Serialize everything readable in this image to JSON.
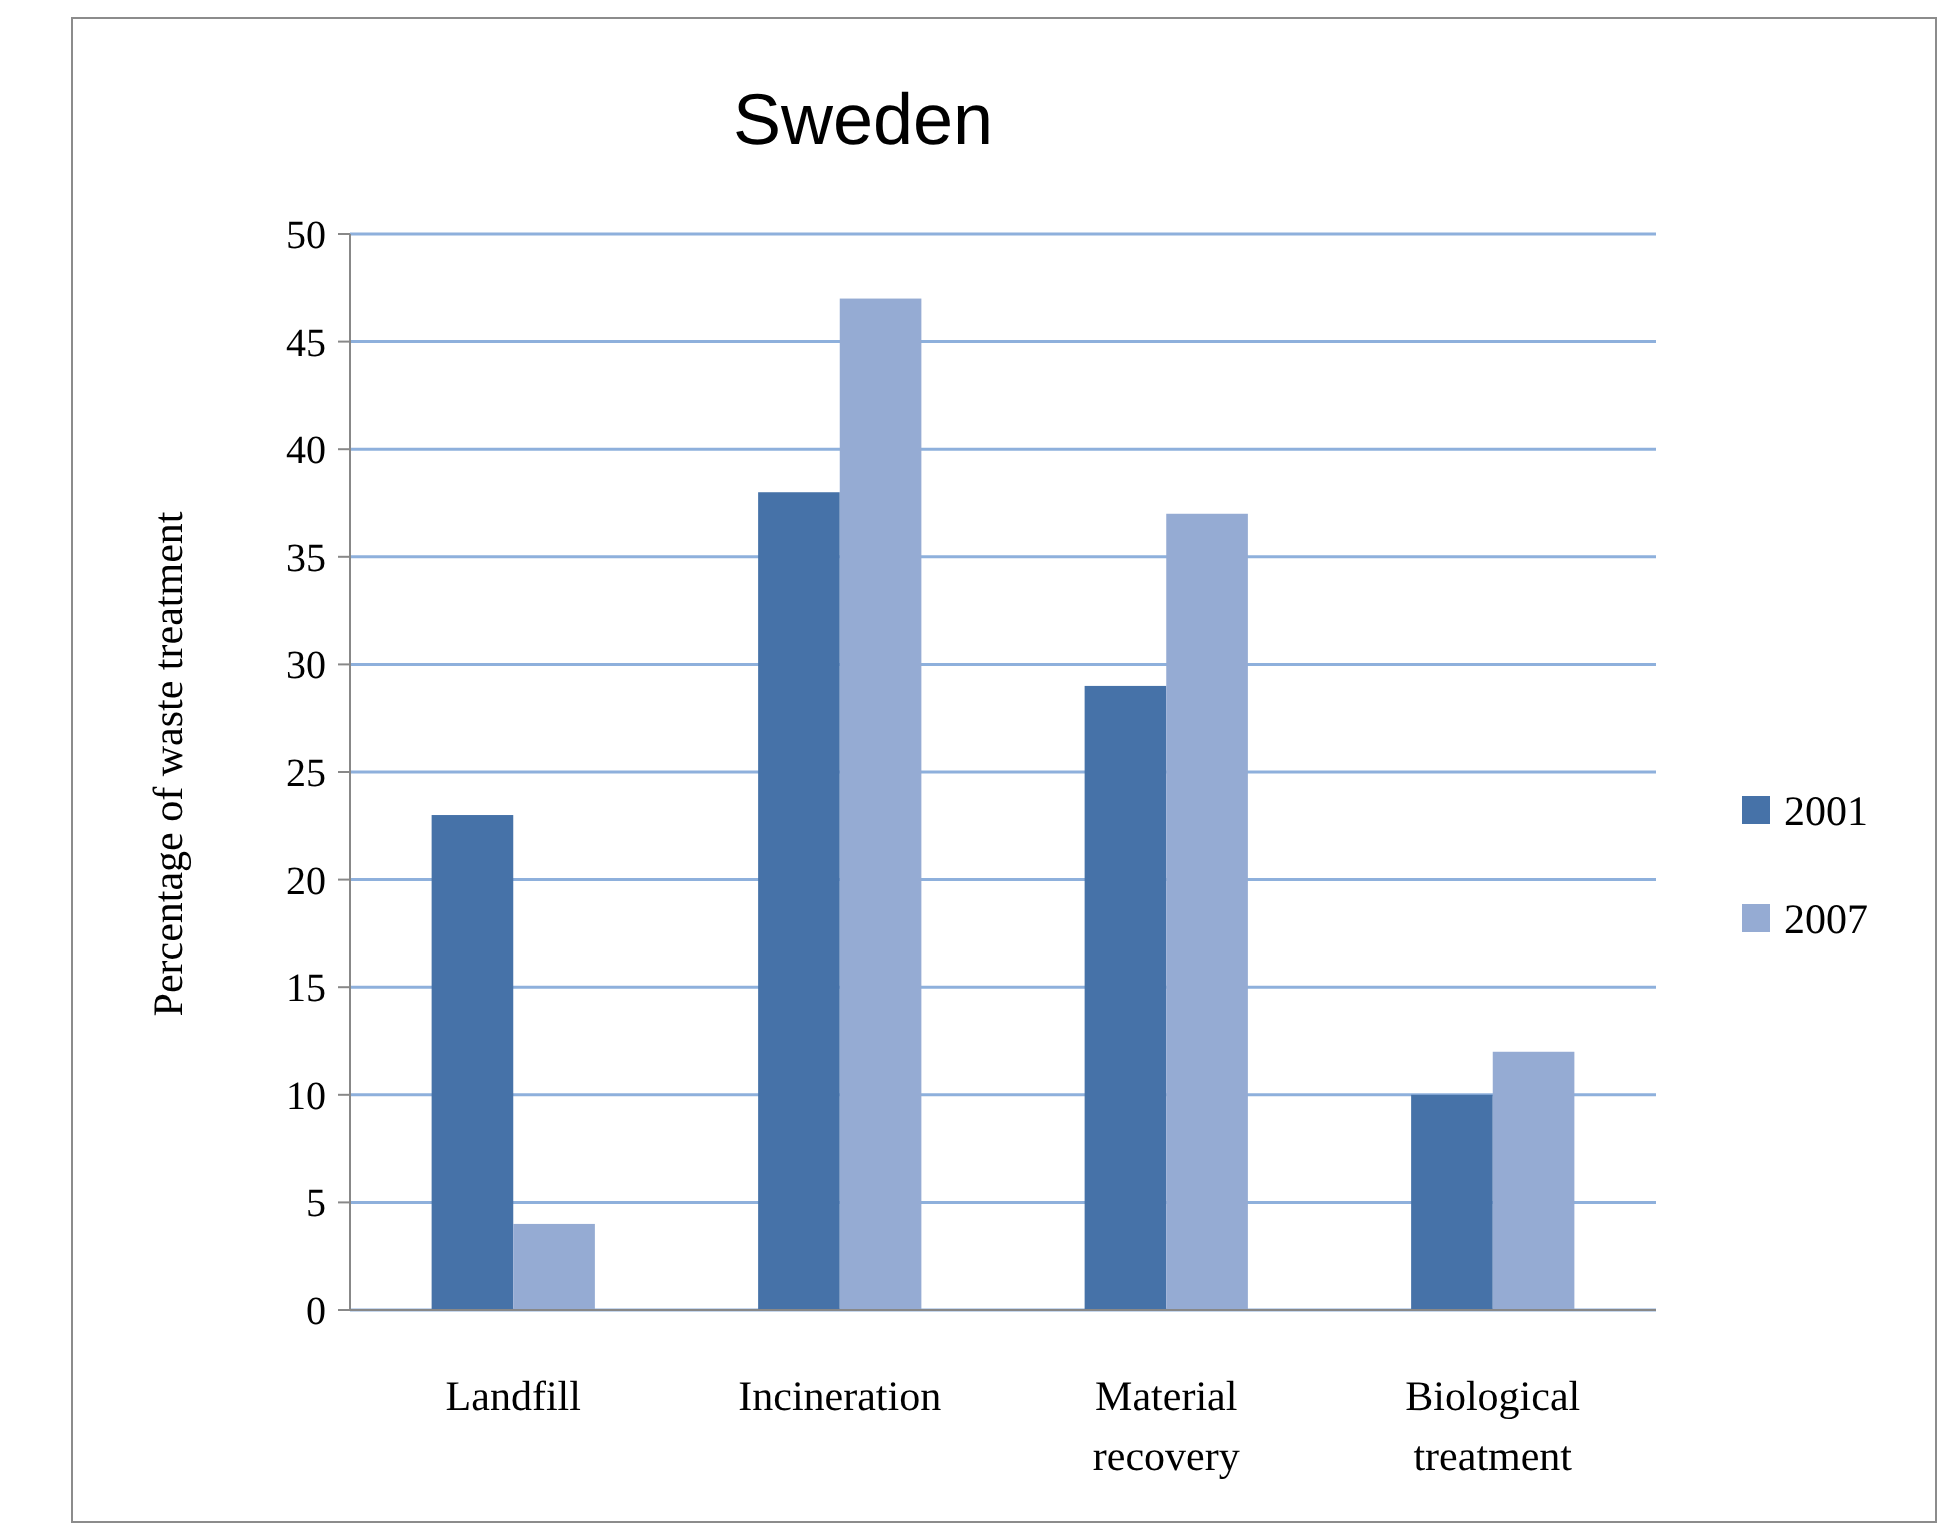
{
  "chart_data": {
    "type": "bar",
    "title": "Sweden",
    "ylabel": "Percentage of waste treatment",
    "categories": [
      "Landfill",
      "Incineration",
      "Material recovery",
      "Biological treatment"
    ],
    "series": [
      {
        "name": "2001",
        "color": "#4672a8",
        "values": [
          23,
          38,
          29,
          10
        ]
      },
      {
        "name": "2007",
        "color": "#95abd3",
        "values": [
          4,
          47,
          37,
          12
        ]
      }
    ],
    "ylim": [
      0,
      50
    ],
    "yticks": [
      0,
      5,
      10,
      15,
      20,
      25,
      30,
      35,
      40,
      45,
      50
    ],
    "grid": "y",
    "legend": "right"
  }
}
